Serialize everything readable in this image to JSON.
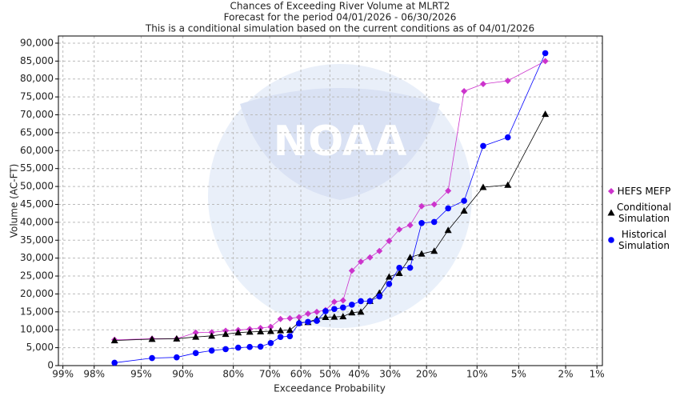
{
  "chart_data": {
    "type": "line",
    "title": "Chances of Exceeding River Volume at MLRT2",
    "subtitle": [
      "Forecast for the period 04/01/2026 - 06/30/2026",
      "This is a conditional simulation based on the current conditions as of 04/01/2026"
    ],
    "watermark": "NOAA",
    "xlabel": "Exceedance Probability",
    "ylabel": "Volume (AC-FT)",
    "xscale": "probability",
    "xlim": [
      99.1,
      0.88
    ],
    "xticks": [
      {
        "value": 99,
        "label": "99%"
      },
      {
        "value": 98,
        "label": "98%"
      },
      {
        "value": 95,
        "label": "95%"
      },
      {
        "value": 90,
        "label": "90%"
      },
      {
        "value": 80,
        "label": "80%"
      },
      {
        "value": 70,
        "label": "70%"
      },
      {
        "value": 60,
        "label": "60%"
      },
      {
        "value": 50,
        "label": "50%"
      },
      {
        "value": 40,
        "label": "40%"
      },
      {
        "value": 30,
        "label": "30%"
      },
      {
        "value": 20,
        "label": "20%"
      },
      {
        "value": 10,
        "label": "10%"
      },
      {
        "value": 5,
        "label": "5%"
      },
      {
        "value": 2,
        "label": "2%"
      },
      {
        "value": 1,
        "label": "1%"
      }
    ],
    "ylim": [
      0,
      92000
    ],
    "yticks": [
      0,
      {
        "value": 5000,
        "label": "5,000"
      },
      {
        "value": 10000,
        "label": "10,000"
      },
      {
        "value": 15000,
        "label": "15,000"
      },
      {
        "value": 20000,
        "label": "20,000"
      },
      {
        "value": 25000,
        "label": "25,000"
      },
      {
        "value": 30000,
        "label": "30,000"
      },
      {
        "value": 35000,
        "label": "35,000"
      },
      {
        "value": 40000,
        "label": "40,000"
      },
      {
        "value": 45000,
        "label": "45,000"
      },
      {
        "value": 50000,
        "label": "50,000"
      },
      {
        "value": 55000,
        "label": "55,000"
      },
      {
        "value": 60000,
        "label": "60,000"
      },
      {
        "value": 65000,
        "label": "65,000"
      },
      {
        "value": 70000,
        "label": "70,000"
      },
      {
        "value": 75000,
        "label": "75,000"
      },
      {
        "value": 80000,
        "label": "80,000"
      },
      {
        "value": 85000,
        "label": "85,000"
      },
      {
        "value": 90000,
        "label": "90,000"
      }
    ],
    "grid": true,
    "legend": "right",
    "x": [
      96.97,
      93.94,
      90.91,
      87.88,
      84.85,
      81.82,
      78.79,
      75.76,
      72.73,
      69.7,
      66.67,
      63.64,
      60.61,
      57.58,
      54.55,
      51.52,
      48.48,
      45.45,
      42.42,
      39.39,
      36.36,
      33.33,
      30.3,
      27.27,
      24.24,
      21.21,
      18.18,
      15.15,
      12.12,
      9.09,
      6.06,
      3.03
    ],
    "series": [
      {
        "name": "HEFS MEFP",
        "color": "#cc33cc",
        "marker": "diamond",
        "values": [
          7200,
          7500,
          7500,
          9200,
          9300,
          9700,
          9900,
          10200,
          10500,
          10800,
          13000,
          13200,
          13500,
          14500,
          15000,
          15500,
          17800,
          18200,
          26500,
          29000,
          30200,
          32000,
          34800,
          38000,
          39200,
          44500,
          45000,
          48800,
          76600,
          78600,
          79500,
          85000
        ]
      },
      {
        "name": "Conditional Simulation",
        "color": "#000000",
        "marker": "triangle",
        "values": [
          7000,
          7400,
          7500,
          8000,
          8300,
          8800,
          9200,
          9400,
          9500,
          9600,
          9800,
          9900,
          12000,
          12100,
          13000,
          13500,
          13600,
          13700,
          14800,
          15000,
          18000,
          20300,
          24800,
          25800,
          30200,
          31200,
          32000,
          37800,
          43200,
          49800,
          50400,
          70200
        ]
      },
      {
        "name": "Historical Simulation",
        "color": "#0000ff",
        "marker": "circle",
        "values": [
          800,
          2100,
          2300,
          3500,
          4200,
          4600,
          5000,
          5200,
          5300,
          6300,
          8000,
          8200,
          11800,
          12200,
          12500,
          15200,
          15800,
          16200,
          17000,
          18000,
          18000,
          19300,
          22800,
          27300,
          27300,
          39800,
          40100,
          43900,
          46000,
          61300,
          63700,
          87200
        ]
      }
    ]
  }
}
